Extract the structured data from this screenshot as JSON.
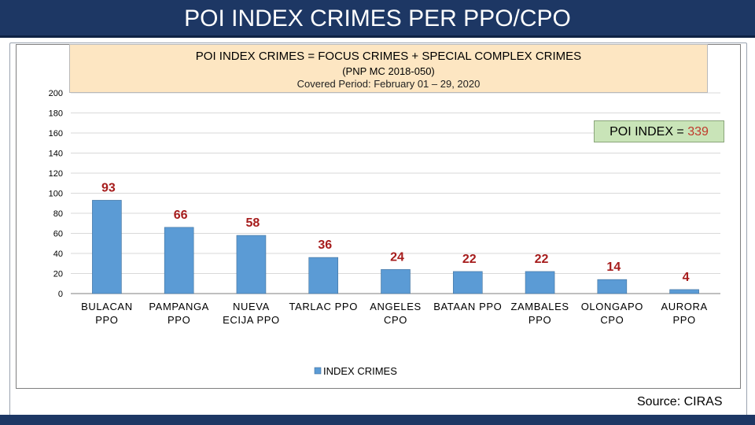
{
  "page": {
    "title": "POI INDEX CRIMES PER PPO/CPO",
    "source": "Source: CIRAS"
  },
  "header": {
    "line1": "POI INDEX CRIMES = FOCUS CRIMES + SPECIAL COMPLEX CRIMES",
    "line2": "(PNP MC 2018-050)",
    "line3": "Covered Period: February 01 – 29, 2020"
  },
  "poi_box": {
    "label": "POI INDEX = ",
    "value": "339"
  },
  "colors": {
    "bar": "#5b9bd5",
    "bar_border": "#41719c",
    "label": "#a61c1c",
    "title_bar": "#1d3764"
  },
  "chart_data": {
    "type": "bar",
    "categories": [
      [
        "BULACAN",
        "PPO"
      ],
      [
        "PAMPANGA",
        "PPO"
      ],
      [
        "NUEVA",
        "ECIJA PPO"
      ],
      [
        "TARLAC PPO"
      ],
      [
        "ANGELES",
        "CPO"
      ],
      [
        "BATAAN PPO"
      ],
      [
        "ZAMBALES",
        "PPO"
      ],
      [
        "OLONGAPO",
        "CPO"
      ],
      [
        "AURORA",
        "PPO"
      ]
    ],
    "series": [
      {
        "name": "INDEX CRIMES",
        "values": [
          93,
          66,
          58,
          36,
          24,
          22,
          22,
          14,
          4
        ]
      }
    ],
    "ylim": [
      0,
      200
    ],
    "yticks": [
      0,
      20,
      40,
      60,
      80,
      100,
      120,
      140,
      160,
      180,
      200
    ],
    "grid": true,
    "legend": "bottom"
  }
}
